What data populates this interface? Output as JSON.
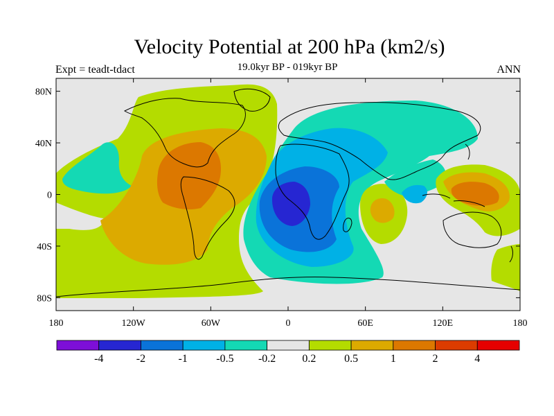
{
  "title": "Velocity Potential at 200 hPa (km2/s)",
  "subtitle": "19.0kyr BP - 019kyr BP",
  "left_label": "Expt = teadt-tdact",
  "right_label": "ANN",
  "lat_ticks": [
    {
      "label": "80N",
      "value": 80
    },
    {
      "label": "40N",
      "value": 40
    },
    {
      "label": "0",
      "value": 0
    },
    {
      "label": "40S",
      "value": -40
    },
    {
      "label": "80S",
      "value": -80
    }
  ],
  "lon_ticks": [
    {
      "label": "180",
      "value": -180
    },
    {
      "label": "120W",
      "value": -120
    },
    {
      "label": "60W",
      "value": -60
    },
    {
      "label": "0",
      "value": 0
    },
    {
      "label": "60E",
      "value": 60
    },
    {
      "label": "120E",
      "value": 120
    },
    {
      "label": "180",
      "value": 180
    }
  ],
  "colorbar": {
    "colors": [
      "#7d0fd8",
      "#2626d2",
      "#0a73d9",
      "#00b1e6",
      "#14d9b4",
      "#e6e6e6",
      "#b4dc00",
      "#dcaa00",
      "#dc7800",
      "#dc3c00",
      "#e60000"
    ],
    "labels": [
      "-4",
      "-2",
      "-1",
      "-0.5",
      "-0.2",
      "0.2",
      "0.5",
      "1",
      "2",
      "4"
    ]
  }
}
